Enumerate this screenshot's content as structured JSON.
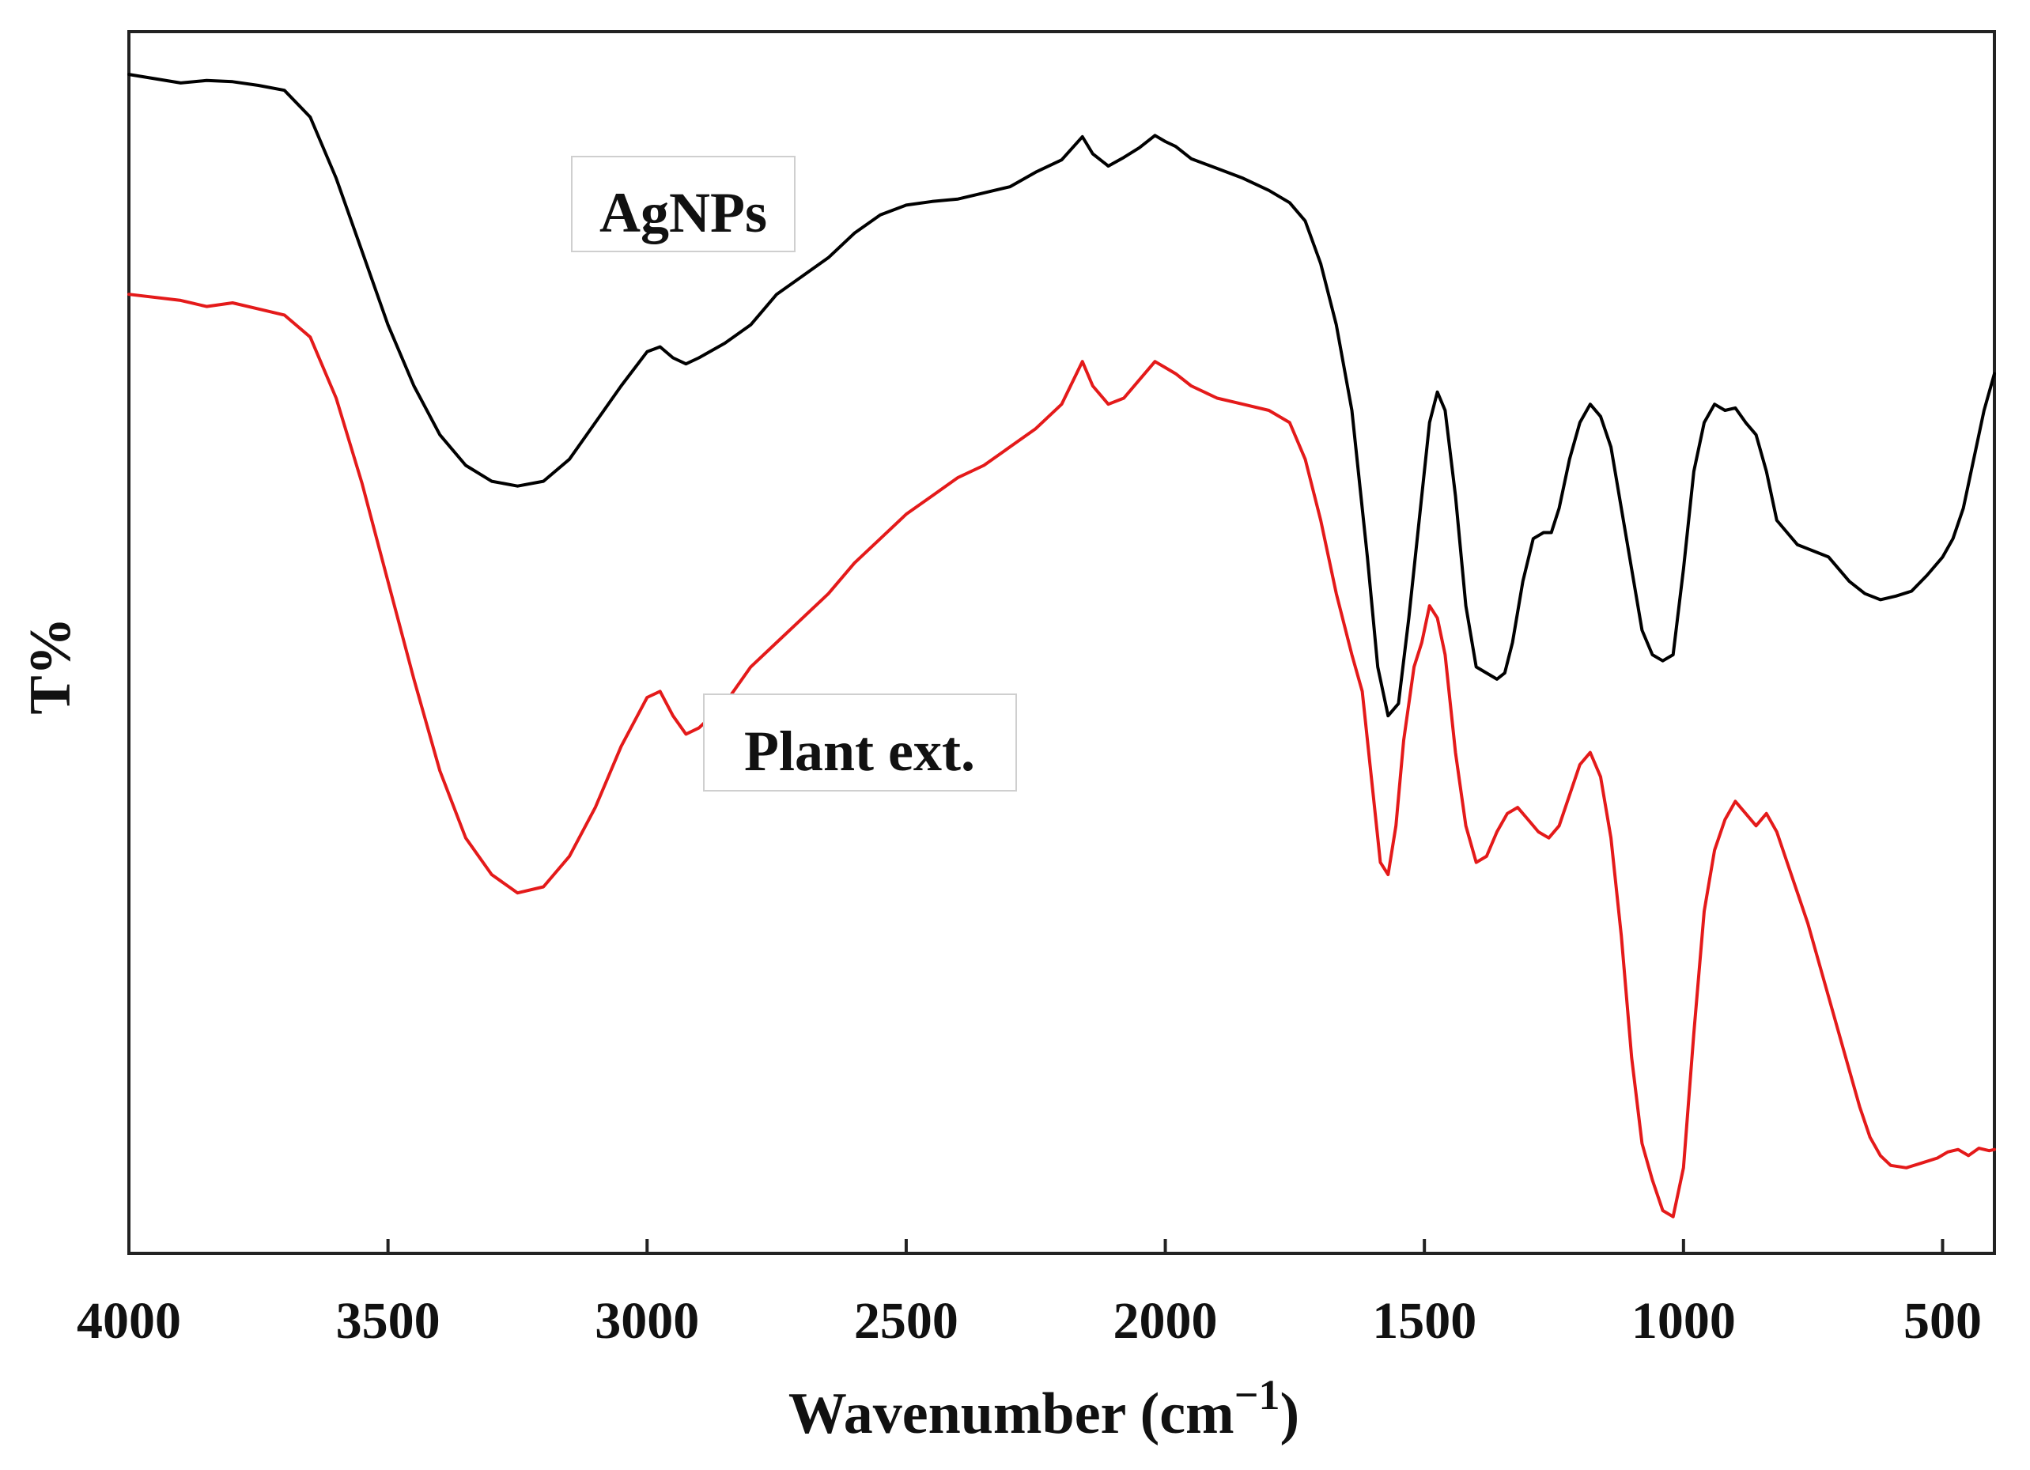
{
  "chart_data": {
    "type": "line",
    "xlabel": "Wavenumber (cm",
    "xlabel_sup": "−1",
    "xlabel_close": ")",
    "ylabel": "T%",
    "xlim": [
      4000,
      400
    ],
    "ylim": [
      0,
      100
    ],
    "x_reversed": true,
    "x_ticks": [
      4000,
      3500,
      3000,
      2500,
      2000,
      1500,
      1000,
      500
    ],
    "y_ticks_shown": false,
    "grid": false,
    "legend": "inline labels",
    "series": [
      {
        "name": "AgNPs",
        "color": "#000000",
        "points": [
          [
            4000,
            96.5
          ],
          [
            3900,
            95.8
          ],
          [
            3850,
            96.0
          ],
          [
            3800,
            95.9
          ],
          [
            3750,
            95.6
          ],
          [
            3700,
            95.2
          ],
          [
            3650,
            93.0
          ],
          [
            3600,
            88.0
          ],
          [
            3550,
            82.0
          ],
          [
            3500,
            76.0
          ],
          [
            3450,
            71.0
          ],
          [
            3400,
            67.0
          ],
          [
            3350,
            64.5
          ],
          [
            3300,
            63.2
          ],
          [
            3250,
            62.8
          ],
          [
            3200,
            63.2
          ],
          [
            3150,
            65.0
          ],
          [
            3100,
            68.0
          ],
          [
            3050,
            71.0
          ],
          [
            3000,
            73.8
          ],
          [
            2975,
            74.2
          ],
          [
            2950,
            73.3
          ],
          [
            2925,
            72.8
          ],
          [
            2900,
            73.3
          ],
          [
            2850,
            74.5
          ],
          [
            2800,
            76.0
          ],
          [
            2750,
            78.5
          ],
          [
            2700,
            80.0
          ],
          [
            2650,
            81.5
          ],
          [
            2600,
            83.5
          ],
          [
            2550,
            85.0
          ],
          [
            2500,
            85.8
          ],
          [
            2450,
            86.1
          ],
          [
            2400,
            86.3
          ],
          [
            2350,
            86.8
          ],
          [
            2300,
            87.3
          ],
          [
            2250,
            88.5
          ],
          [
            2200,
            89.5
          ],
          [
            2160,
            91.4
          ],
          [
            2140,
            90.0
          ],
          [
            2110,
            89.0
          ],
          [
            2080,
            89.7
          ],
          [
            2050,
            90.5
          ],
          [
            2020,
            91.5
          ],
          [
            2000,
            91.0
          ],
          [
            1980,
            90.6
          ],
          [
            1950,
            89.6
          ],
          [
            1900,
            88.8
          ],
          [
            1850,
            88.0
          ],
          [
            1800,
            87.0
          ],
          [
            1760,
            86.0
          ],
          [
            1730,
            84.5
          ],
          [
            1700,
            81.0
          ],
          [
            1670,
            76.0
          ],
          [
            1640,
            69.0
          ],
          [
            1610,
            57.0
          ],
          [
            1590,
            48.0
          ],
          [
            1570,
            44.0
          ],
          [
            1550,
            45.0
          ],
          [
            1530,
            52.0
          ],
          [
            1510,
            60.0
          ],
          [
            1490,
            68.0
          ],
          [
            1475,
            70.5
          ],
          [
            1460,
            69.0
          ],
          [
            1440,
            62.0
          ],
          [
            1420,
            53.0
          ],
          [
            1400,
            48.0
          ],
          [
            1380,
            47.5
          ],
          [
            1360,
            47.0
          ],
          [
            1345,
            47.5
          ],
          [
            1330,
            50.0
          ],
          [
            1310,
            55.0
          ],
          [
            1290,
            58.5
          ],
          [
            1270,
            59.0
          ],
          [
            1255,
            59.0
          ],
          [
            1240,
            61.0
          ],
          [
            1220,
            65.0
          ],
          [
            1200,
            68.0
          ],
          [
            1180,
            69.5
          ],
          [
            1160,
            68.5
          ],
          [
            1140,
            66.0
          ],
          [
            1120,
            61.0
          ],
          [
            1100,
            56.0
          ],
          [
            1080,
            51.0
          ],
          [
            1060,
            49.0
          ],
          [
            1040,
            48.5
          ],
          [
            1020,
            49.0
          ],
          [
            1000,
            56.0
          ],
          [
            980,
            64.0
          ],
          [
            960,
            68.0
          ],
          [
            940,
            69.5
          ],
          [
            920,
            69.0
          ],
          [
            900,
            69.2
          ],
          [
            880,
            68.0
          ],
          [
            860,
            67.0
          ],
          [
            840,
            64.0
          ],
          [
            820,
            60.0
          ],
          [
            800,
            59.0
          ],
          [
            780,
            58.0
          ],
          [
            750,
            57.5
          ],
          [
            720,
            57.0
          ],
          [
            700,
            56.0
          ],
          [
            680,
            55.0
          ],
          [
            650,
            54.0
          ],
          [
            620,
            53.5
          ],
          [
            590,
            53.8
          ],
          [
            560,
            54.2
          ],
          [
            530,
            55.5
          ],
          [
            500,
            57.0
          ],
          [
            480,
            58.5
          ],
          [
            460,
            61.0
          ],
          [
            440,
            65.0
          ],
          [
            420,
            69.0
          ],
          [
            400,
            72.0
          ]
        ]
      },
      {
        "name": "Plant ext.",
        "color": "#e41a1a",
        "points": [
          [
            4000,
            78.5
          ],
          [
            3900,
            78.0
          ],
          [
            3850,
            77.5
          ],
          [
            3800,
            77.8
          ],
          [
            3750,
            77.3
          ],
          [
            3700,
            76.8
          ],
          [
            3650,
            75.0
          ],
          [
            3600,
            70.0
          ],
          [
            3550,
            63.0
          ],
          [
            3500,
            55.0
          ],
          [
            3450,
            47.0
          ],
          [
            3400,
            39.5
          ],
          [
            3350,
            34.0
          ],
          [
            3300,
            31.0
          ],
          [
            3250,
            29.5
          ],
          [
            3200,
            30.0
          ],
          [
            3150,
            32.5
          ],
          [
            3100,
            36.5
          ],
          [
            3050,
            41.5
          ],
          [
            3000,
            45.5
          ],
          [
            2975,
            46.0
          ],
          [
            2950,
            44.0
          ],
          [
            2925,
            42.5
          ],
          [
            2900,
            43.0
          ],
          [
            2850,
            45.0
          ],
          [
            2800,
            48.0
          ],
          [
            2750,
            50.0
          ],
          [
            2700,
            52.0
          ],
          [
            2650,
            54.0
          ],
          [
            2600,
            56.5
          ],
          [
            2550,
            58.5
          ],
          [
            2500,
            60.5
          ],
          [
            2450,
            62.0
          ],
          [
            2400,
            63.5
          ],
          [
            2350,
            64.5
          ],
          [
            2300,
            66.0
          ],
          [
            2250,
            67.5
          ],
          [
            2200,
            69.5
          ],
          [
            2160,
            73.0
          ],
          [
            2140,
            71.0
          ],
          [
            2110,
            69.5
          ],
          [
            2080,
            70.0
          ],
          [
            2050,
            71.5
          ],
          [
            2020,
            73.0
          ],
          [
            2000,
            72.5
          ],
          [
            1980,
            72.0
          ],
          [
            1950,
            71.0
          ],
          [
            1900,
            70.0
          ],
          [
            1850,
            69.5
          ],
          [
            1800,
            69.0
          ],
          [
            1760,
            68.0
          ],
          [
            1730,
            65.0
          ],
          [
            1700,
            60.0
          ],
          [
            1670,
            54.0
          ],
          [
            1640,
            49.0
          ],
          [
            1620,
            46.0
          ],
          [
            1600,
            38.0
          ],
          [
            1585,
            32.0
          ],
          [
            1570,
            31.0
          ],
          [
            1555,
            35.0
          ],
          [
            1540,
            42.0
          ],
          [
            1520,
            48.0
          ],
          [
            1505,
            50.0
          ],
          [
            1490,
            53.0
          ],
          [
            1475,
            52.0
          ],
          [
            1460,
            49.0
          ],
          [
            1440,
            41.0
          ],
          [
            1420,
            35.0
          ],
          [
            1400,
            32.0
          ],
          [
            1380,
            32.5
          ],
          [
            1360,
            34.5
          ],
          [
            1340,
            36.0
          ],
          [
            1320,
            36.5
          ],
          [
            1300,
            35.5
          ],
          [
            1280,
            34.5
          ],
          [
            1260,
            34.0
          ],
          [
            1240,
            35.0
          ],
          [
            1220,
            37.5
          ],
          [
            1200,
            40.0
          ],
          [
            1180,
            41.0
          ],
          [
            1160,
            39.0
          ],
          [
            1140,
            34.0
          ],
          [
            1120,
            26.0
          ],
          [
            1100,
            16.0
          ],
          [
            1080,
            9.0
          ],
          [
            1060,
            6.0
          ],
          [
            1040,
            3.5
          ],
          [
            1020,
            3.0
          ],
          [
            1000,
            7.0
          ],
          [
            980,
            18.0
          ],
          [
            960,
            28.0
          ],
          [
            940,
            33.0
          ],
          [
            920,
            35.5
          ],
          [
            900,
            37.0
          ],
          [
            880,
            36.0
          ],
          [
            860,
            35.0
          ],
          [
            840,
            36.0
          ],
          [
            820,
            34.5
          ],
          [
            800,
            32.0
          ],
          [
            780,
            29.5
          ],
          [
            760,
            27.0
          ],
          [
            740,
            24.0
          ],
          [
            720,
            21.0
          ],
          [
            700,
            18.0
          ],
          [
            680,
            15.0
          ],
          [
            660,
            12.0
          ],
          [
            640,
            9.5
          ],
          [
            620,
            8.0
          ],
          [
            600,
            7.2
          ],
          [
            570,
            7.0
          ],
          [
            540,
            7.4
          ],
          [
            510,
            7.8
          ],
          [
            490,
            8.3
          ],
          [
            470,
            8.5
          ],
          [
            450,
            8.0
          ],
          [
            430,
            8.6
          ],
          [
            410,
            8.4
          ],
          [
            400,
            8.5
          ]
        ]
      }
    ]
  }
}
